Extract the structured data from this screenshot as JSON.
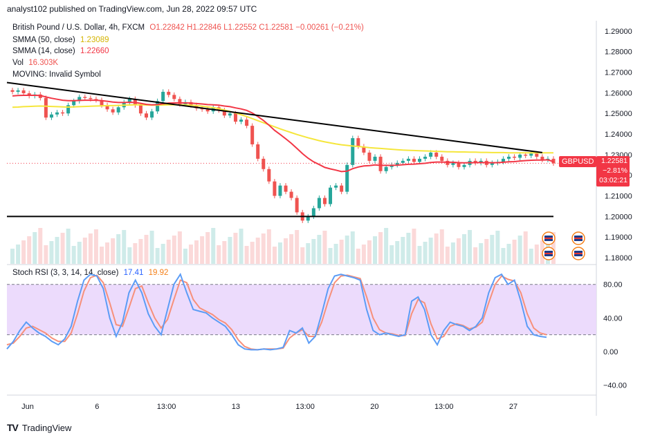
{
  "header": {
    "published": "analyst102 published on TradingView.com, Jun 28, 2022 09:57 UTC"
  },
  "legend": {
    "symbol": "British Pound / U.S. Dollar, 4h, FXCM",
    "ohlc": "O1.22842 H1.22846 L1.22552 C1.22581 −0.00261 (−0.21%)",
    "sma50_label": "SMMA (50, close)",
    "sma50_value": "1.23089",
    "sma14_label": "SMMA (14, close)",
    "sma14_value": "1.22660",
    "vol_label": "Vol",
    "vol_value": "16.303K",
    "moving_label": "MOVING: Invalid Symbol",
    "stoch_label": "Stoch RSI (3, 3, 14, 14, close)",
    "stoch_k": "17.41",
    "stoch_d": "19.92"
  },
  "price_badge": {
    "symbol": "GBPUSD",
    "price": "1.22581",
    "change": "−2.81%",
    "countdown": "03:02:21"
  },
  "footer": {
    "brand": "TradingView"
  },
  "colors": {
    "up": "#26a69a",
    "down": "#ef5350",
    "sma50": "#f5e63b",
    "sma14": "#f23645",
    "k": "#5b9cf6",
    "d": "#f7907a",
    "band": "#e9d5fb",
    "trendline": "#000000"
  },
  "chart_data": [
    {
      "type": "candlestick",
      "title": "British Pound / U.S. Dollar, 4h, FXCM",
      "x_ticks": [
        "Jun",
        "6",
        "13:00",
        "13",
        "13:00",
        "20",
        "13:00",
        "27"
      ],
      "y_ticks": [
        "1.29000",
        "1.28000",
        "1.27000",
        "1.26000",
        "1.25000",
        "1.24000",
        "1.23000",
        "1.22000",
        "1.21000",
        "1.20000",
        "1.19000",
        "1.18000"
      ],
      "ylim": [
        1.177,
        1.295
      ],
      "close": [
        1.2605,
        1.2612,
        1.2598,
        1.2585,
        1.2592,
        1.2575,
        1.248,
        1.2495,
        1.2505,
        1.25,
        1.254,
        1.256,
        1.258,
        1.2575,
        1.257,
        1.2565,
        1.254,
        1.252,
        1.2505,
        1.253,
        1.2555,
        1.257,
        1.254,
        1.25,
        1.248,
        1.251,
        1.256,
        1.2605,
        1.259,
        1.257,
        1.2545,
        1.2555,
        1.254,
        1.2525,
        1.252,
        1.251,
        1.253,
        1.2515,
        1.249,
        1.25,
        1.246,
        1.247,
        1.244,
        1.235,
        1.228,
        1.223,
        1.217,
        1.21,
        1.215,
        1.212,
        1.209,
        1.202,
        1.198,
        1.2,
        1.204,
        1.209,
        1.206,
        1.214,
        1.215,
        1.212,
        1.225,
        1.238,
        1.234,
        1.231,
        1.227,
        1.229,
        1.222,
        1.224,
        1.225,
        1.226,
        1.227,
        1.228,
        1.2265,
        1.228,
        1.229,
        1.231,
        1.229,
        1.227,
        1.225,
        1.226,
        1.224,
        1.225,
        1.227,
        1.226,
        1.227,
        1.225,
        1.226,
        1.2265,
        1.228,
        1.229,
        1.2285,
        1.23,
        1.2295,
        1.2305,
        1.229,
        1.2275,
        1.228,
        1.2258
      ],
      "sma50": [
        1.253,
        1.2531,
        1.2533,
        1.2534,
        1.2535,
        1.2536,
        1.2535,
        1.2534,
        1.2533,
        1.2532,
        1.2531,
        1.2532,
        1.2533,
        1.2534,
        1.2535,
        1.2536,
        1.2537,
        1.2538,
        1.2538,
        1.2539,
        1.254,
        1.2541,
        1.2542,
        1.2542,
        1.2541,
        1.254,
        1.254,
        1.2541,
        1.2542,
        1.2542,
        1.2542,
        1.2541,
        1.254,
        1.2538,
        1.2535,
        1.2532,
        1.2528,
        1.2523,
        1.2517,
        1.251,
        1.2502,
        1.2494,
        1.2485,
        1.2475,
        1.2465,
        1.2455,
        1.2445,
        1.2435,
        1.2425,
        1.2416,
        1.2407,
        1.2398,
        1.239,
        1.2382,
        1.2375,
        1.2368,
        1.2362,
        1.2357,
        1.2352,
        1.2348,
        1.2345,
        1.2342,
        1.234,
        1.2337,
        1.2334,
        1.2332,
        1.233,
        1.2328,
        1.2326,
        1.2324,
        1.2322,
        1.2321,
        1.232,
        1.2319,
        1.2318,
        1.2317,
        1.2316,
        1.2315,
        1.2314,
        1.2314,
        1.2313,
        1.2313,
        1.2312,
        1.2312,
        1.2311,
        1.2311,
        1.231,
        1.231,
        1.231,
        1.2309,
        1.2309,
        1.2309,
        1.2309,
        1.2309,
        1.2309,
        1.2309,
        1.2309,
        1.2309
      ],
      "sma14": [
        1.2585,
        1.2587,
        1.2588,
        1.2588,
        1.2588,
        1.2587,
        1.258,
        1.2574,
        1.2569,
        1.2564,
        1.2562,
        1.2562,
        1.2563,
        1.2564,
        1.2564,
        1.2564,
        1.2562,
        1.2559,
        1.2555,
        1.2553,
        1.2553,
        1.2554,
        1.2553,
        1.2549,
        1.2544,
        1.2542,
        1.2543,
        1.2547,
        1.255,
        1.2551,
        1.2551,
        1.2551,
        1.255,
        1.2548,
        1.2546,
        1.2543,
        1.2542,
        1.254,
        1.2536,
        1.2533,
        1.2527,
        1.2522,
        1.2515,
        1.2502,
        1.2485,
        1.2466,
        1.2443,
        1.2418,
        1.2398,
        1.2377,
        1.2355,
        1.233,
        1.2305,
        1.2283,
        1.2265,
        1.2252,
        1.2238,
        1.2231,
        1.2225,
        1.2218,
        1.222,
        1.2232,
        1.224,
        1.2245,
        1.2247,
        1.225,
        1.2248,
        1.2248,
        1.2248,
        1.2249,
        1.2251,
        1.2253,
        1.2254,
        1.2256,
        1.2258,
        1.2262,
        1.2264,
        1.2264,
        1.2263,
        1.2263,
        1.2261,
        1.226,
        1.2261,
        1.2261,
        1.2262,
        1.2261,
        1.2261,
        1.2261,
        1.2263,
        1.2265,
        1.2266,
        1.2269,
        1.2271,
        1.2273,
        1.2274,
        1.2274,
        1.2275,
        1.2266
      ],
      "volume_scale": "relative",
      "trendlines": [
        {
          "name": "descending resistance",
          "from": 1.265,
          "to": 1.231
        },
        {
          "name": "horizontal support",
          "level": 1.2
        }
      ],
      "last_price": 1.22581
    },
    {
      "type": "line",
      "title": "Stoch RSI (3, 3, 14, 14, close)",
      "y_ticks": [
        "80.00",
        "40.00",
        "0.00",
        "−40.00"
      ],
      "ylim": [
        -52,
        102
      ],
      "band": [
        20,
        80
      ],
      "series": [
        {
          "name": "K",
          "values": [
            3,
            12,
            25,
            35,
            28,
            22,
            18,
            12,
            8,
            15,
            30,
            60,
            85,
            92,
            90,
            75,
            40,
            18,
            35,
            70,
            85,
            70,
            45,
            30,
            20,
            50,
            80,
            92,
            70,
            50,
            48,
            46,
            40,
            35,
            30,
            20,
            8,
            3,
            2,
            2,
            3,
            2,
            3,
            5,
            25,
            22,
            28,
            10,
            18,
            45,
            75,
            90,
            92,
            90,
            88,
            85,
            50,
            25,
            20,
            22,
            20,
            18,
            20,
            60,
            65,
            50,
            20,
            8,
            25,
            35,
            32,
            30,
            25,
            30,
            40,
            70,
            88,
            92,
            80,
            85,
            60,
            30,
            20,
            18,
            17
          ]
        },
        {
          "name": "D",
          "values": [
            8,
            10,
            18,
            28,
            30,
            26,
            22,
            16,
            12,
            12,
            22,
            45,
            72,
            88,
            91,
            82,
            58,
            32,
            30,
            52,
            75,
            78,
            58,
            40,
            28,
            38,
            62,
            85,
            82,
            62,
            52,
            48,
            44,
            38,
            34,
            26,
            14,
            6,
            3,
            2,
            3,
            3,
            3,
            4,
            16,
            22,
            26,
            18,
            18,
            35,
            60,
            82,
            90,
            91,
            89,
            87,
            65,
            40,
            26,
            22,
            21,
            19,
            19,
            45,
            62,
            58,
            33,
            15,
            18,
            30,
            33,
            31,
            27,
            29,
            35,
            58,
            80,
            90,
            86,
            84,
            70,
            45,
            28,
            22,
            20
          ]
        }
      ]
    }
  ]
}
